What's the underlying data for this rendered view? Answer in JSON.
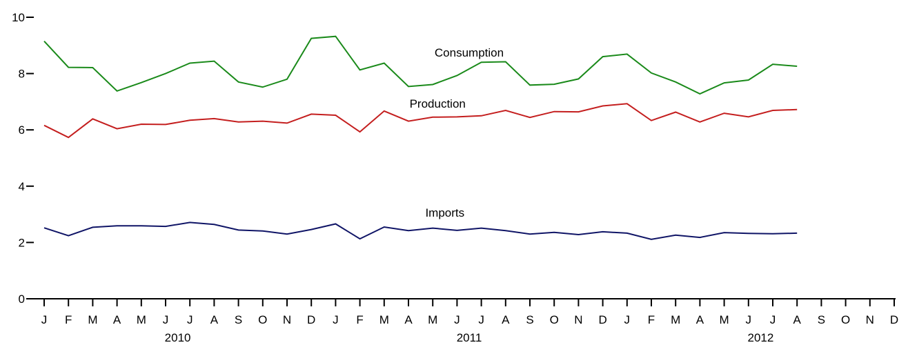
{
  "chart_data": {
    "type": "line",
    "x": [
      "2010-01",
      "2010-02",
      "2010-03",
      "2010-04",
      "2010-05",
      "2010-06",
      "2010-07",
      "2010-08",
      "2010-09",
      "2010-10",
      "2010-11",
      "2010-12",
      "2011-01",
      "2011-02",
      "2011-03",
      "2011-04",
      "2011-05",
      "2011-06",
      "2011-07",
      "2011-08",
      "2011-09",
      "2011-10",
      "2011-11",
      "2011-12",
      "2012-01",
      "2012-02",
      "2012-03",
      "2012-04",
      "2012-05",
      "2012-06",
      "2012-07",
      "2012-08"
    ],
    "x_ticks": [
      "J",
      "F",
      "M",
      "A",
      "M",
      "J",
      "J",
      "A",
      "S",
      "O",
      "N",
      "D",
      "J",
      "F",
      "M",
      "A",
      "M",
      "J",
      "J",
      "A",
      "S",
      "O",
      "N",
      "D",
      "J",
      "F",
      "M",
      "A",
      "M",
      "J",
      "J",
      "A",
      "S",
      "O",
      "N",
      "D"
    ],
    "x_years": [
      "2010",
      "2011",
      "2012"
    ],
    "y_ticks": [
      "0",
      "2",
      "4",
      "6",
      "8",
      "10"
    ],
    "ylim": [
      0,
      10
    ],
    "title": "",
    "xlabel": "",
    "ylabel": "",
    "grid": false,
    "legend": "inline labels",
    "series": [
      {
        "name": "Consumption",
        "color": "#1a8a1a",
        "values": [
          9.15,
          8.22,
          8.21,
          7.38,
          7.68,
          8.0,
          8.37,
          8.44,
          7.7,
          7.52,
          7.8,
          9.25,
          9.32,
          8.13,
          8.37,
          7.54,
          7.61,
          7.93,
          8.4,
          8.42,
          7.59,
          7.62,
          7.81,
          8.6,
          8.69,
          8.02,
          7.7,
          7.28,
          7.67,
          7.77,
          8.33,
          8.26
        ]
      },
      {
        "name": "Production",
        "color": "#c41e1e",
        "values": [
          6.16,
          5.73,
          6.39,
          6.04,
          6.2,
          6.19,
          6.34,
          6.4,
          6.28,
          6.31,
          6.24,
          6.56,
          6.52,
          5.93,
          6.67,
          6.31,
          6.45,
          6.46,
          6.5,
          6.69,
          6.44,
          6.65,
          6.64,
          6.85,
          6.93,
          6.33,
          6.63,
          6.28,
          6.59,
          6.46,
          6.69,
          6.72
        ]
      },
      {
        "name": "Imports",
        "color": "#0f1466",
        "values": [
          2.52,
          2.24,
          2.54,
          2.59,
          2.59,
          2.57,
          2.71,
          2.64,
          2.44,
          2.41,
          2.3,
          2.46,
          2.66,
          2.13,
          2.55,
          2.42,
          2.51,
          2.43,
          2.51,
          2.42,
          2.3,
          2.36,
          2.28,
          2.38,
          2.33,
          2.11,
          2.26,
          2.18,
          2.35,
          2.32,
          2.31,
          2.33
        ]
      }
    ]
  }
}
